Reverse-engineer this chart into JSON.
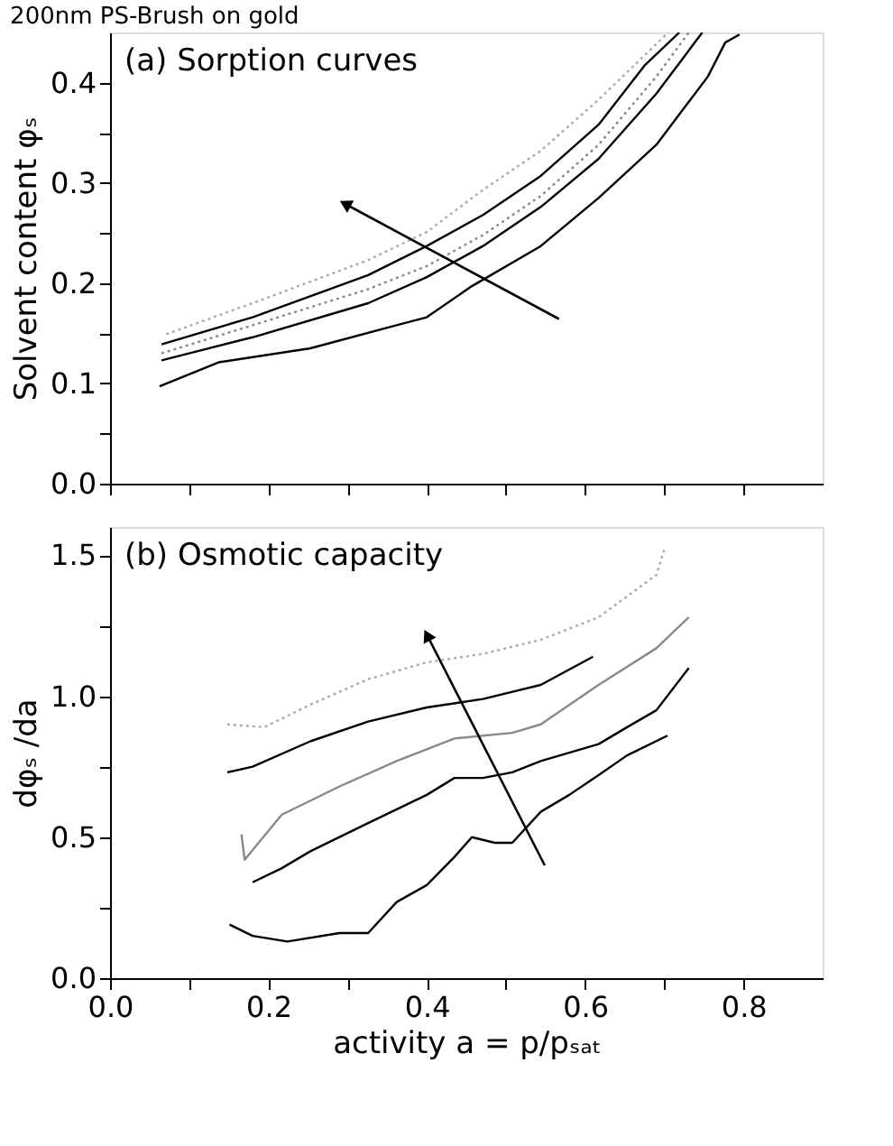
{
  "chart_data": [
    {
      "type": "line",
      "title": "200nm PS-Brush on gold",
      "ylabel": "Solvent content  φₛ",
      "annotations": [
        "(a) Sorption curves"
      ],
      "tick_labels": "y",
      "xlim": [
        0,
        0.9
      ],
      "xticks": [
        {
          "value": 0,
          "label": null
        },
        {
          "value": 0.1,
          "label": null
        },
        {
          "value": 0.2,
          "label": null
        },
        {
          "value": 0.3,
          "label": null
        },
        {
          "value": 0.4,
          "label": null
        },
        {
          "value": 0.5,
          "label": null
        },
        {
          "value": 0.6,
          "label": null
        },
        {
          "value": 0.7,
          "label": null
        },
        {
          "value": 0.8,
          "label": null
        }
      ],
      "ylim": [
        0,
        0.45
      ],
      "yticks": [
        {
          "value": 0,
          "label": "0.0"
        },
        {
          "value": 0.05,
          "label": null
        },
        0.1,
        {
          "value": 0.15,
          "label": null
        },
        0.2,
        {
          "value": 0.25,
          "label": null
        },
        0.3,
        {
          "value": 0.35,
          "label": null
        },
        0.4
      ],
      "series": [
        {
          "color": "#000000",
          "line_style": "solid",
          "x": [
            0.0625,
            0.137,
            0.253,
            0.362,
            0.4,
            0.457,
            0.544,
            0.617,
            0.69,
            0.755,
            0.777,
            0.795
          ],
          "values": [
            0.097,
            0.121,
            0.135,
            0.158,
            0.166,
            0.197,
            0.237,
            0.285,
            0.338,
            0.406,
            0.44,
            0.448
          ]
        },
        {
          "color": "#000000",
          "line_style": "solid",
          "x": [
            0.065,
            0.18,
            0.326,
            0.4,
            0.471,
            0.544,
            0.617,
            0.69,
            0.748
          ],
          "values": [
            0.123,
            0.146,
            0.18,
            0.206,
            0.237,
            0.276,
            0.324,
            0.389,
            0.45
          ]
        },
        {
          "color": "#888888",
          "line_style": "dotted",
          "x": [
            0.065,
            0.18,
            0.326,
            0.4,
            0.471,
            0.544,
            0.617,
            0.69,
            0.731
          ],
          "values": [
            0.13,
            0.158,
            0.194,
            0.217,
            0.248,
            0.287,
            0.338,
            0.406,
            0.45
          ]
        },
        {
          "color": "#000000",
          "line_style": "solid",
          "x": [
            0.065,
            0.18,
            0.326,
            0.4,
            0.471,
            0.544,
            0.617,
            0.675,
            0.719
          ],
          "values": [
            0.139,
            0.166,
            0.208,
            0.237,
            0.268,
            0.307,
            0.358,
            0.417,
            0.45
          ]
        },
        {
          "color": "#aaaaaa",
          "line_style": "dotted",
          "x": [
            0.071,
            0.18,
            0.326,
            0.4,
            0.471,
            0.544,
            0.617,
            0.705
          ],
          "values": [
            0.149,
            0.18,
            0.223,
            0.251,
            0.293,
            0.332,
            0.383,
            0.45
          ]
        }
      ]
    },
    {
      "type": "line",
      "xlabel": "activity a = p/pₛₐₜ",
      "ylabel": "dφₛ /da",
      "annotations": [
        "(b) Osmotic capacity"
      ],
      "xlim": [
        0,
        0.9
      ],
      "xticks": [
        {
          "value": 0,
          "label": "0.0"
        },
        {
          "value": 0.1,
          "label": null
        },
        0.2,
        {
          "value": 0.3,
          "label": null
        },
        0.4,
        {
          "value": 0.5,
          "label": null
        },
        0.6,
        {
          "value": 0.7,
          "label": null
        },
        0.8
      ],
      "ylim": [
        0,
        1.6
      ],
      "yticks": [
        {
          "value": 0,
          "label": "0.0"
        },
        {
          "value": 0.25,
          "label": null
        },
        0.5,
        {
          "value": 0.75,
          "label": null
        },
        {
          "value": 1,
          "label": "1.0"
        },
        {
          "value": 1.25,
          "label": null
        },
        1.5
      ],
      "series": [
        {
          "color": "#000000",
          "line_style": "solid",
          "x": [
            0.151,
            0.18,
            0.224,
            0.29,
            0.326,
            0.362,
            0.4,
            0.435,
            0.457,
            0.486,
            0.508,
            0.544,
            0.58,
            0.617,
            0.653,
            0.704
          ],
          "values": [
            0.19,
            0.15,
            0.13,
            0.16,
            0.16,
            0.27,
            0.33,
            0.43,
            0.5,
            0.48,
            0.48,
            0.59,
            0.65,
            0.72,
            0.79,
            0.86
          ]
        },
        {
          "color": "#000000",
          "line_style": "solid",
          "x": [
            0.18,
            0.217,
            0.253,
            0.326,
            0.4,
            0.435,
            0.471,
            0.508,
            0.544,
            0.617,
            0.653,
            0.69,
            0.731
          ],
          "values": [
            0.34,
            0.39,
            0.45,
            0.55,
            0.65,
            0.71,
            0.71,
            0.73,
            0.77,
            0.83,
            0.89,
            0.95,
            1.1
          ]
        },
        {
          "color": "#888888",
          "line_style": "solid",
          "x": [
            0.166,
            0.17,
            0.217,
            0.29,
            0.362,
            0.435,
            0.508,
            0.544,
            0.617,
            0.69,
            0.731
          ],
          "values": [
            0.51,
            0.42,
            0.58,
            0.68,
            0.77,
            0.85,
            0.87,
            0.9,
            1.04,
            1.17,
            1.28
          ]
        },
        {
          "color": "#000000",
          "line_style": "solid",
          "x": [
            0.148,
            0.18,
            0.253,
            0.326,
            0.4,
            0.471,
            0.544,
            0.61
          ],
          "values": [
            0.73,
            0.75,
            0.84,
            0.91,
            0.96,
            0.99,
            1.04,
            1.14
          ]
        },
        {
          "color": "#aaaaaa",
          "line_style": "dotted",
          "x": [
            0.148,
            0.195,
            0.253,
            0.326,
            0.4,
            0.471,
            0.544,
            0.617,
            0.69,
            0.7
          ],
          "values": [
            0.9,
            0.89,
            0.97,
            1.06,
            1.12,
            1.15,
            1.2,
            1.28,
            1.43,
            1.52
          ]
        }
      ]
    }
  ]
}
